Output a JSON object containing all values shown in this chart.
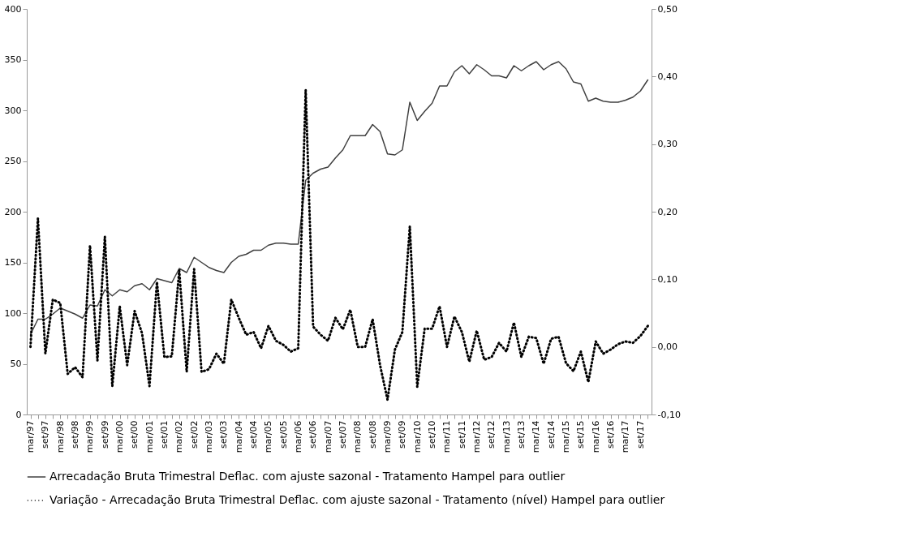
{
  "chart_data": {
    "type": "line",
    "categories": [
      "mar/97",
      null,
      "set/97",
      null,
      "mar/98",
      null,
      "set/98",
      null,
      "mar/99",
      null,
      "set/99",
      null,
      "mar/00",
      null,
      "set/00",
      null,
      "mar/01",
      null,
      "set/01",
      null,
      "mar/02",
      null,
      "set/02",
      null,
      "mar/03",
      null,
      "set/03",
      null,
      "mar/04",
      null,
      "set/04",
      null,
      "mar/05",
      null,
      "set/05",
      null,
      "mar/06",
      null,
      "set/06",
      null,
      "mar/07",
      null,
      "set/07",
      null,
      "mar/08",
      null,
      "set/08",
      null,
      "mar/09",
      null,
      "set/09",
      null,
      "mar/10",
      null,
      "set/10",
      null,
      "mar/11",
      null,
      "set/11",
      null,
      "mar/12",
      null,
      "set/12",
      null,
      "mar/13",
      null,
      "set/13",
      null,
      "mar/14",
      null,
      "set/14",
      null,
      "mar/15",
      null,
      "set/15",
      null,
      "mar/16",
      null,
      "set/16",
      null,
      "mar/17",
      null,
      "set/17",
      null
    ],
    "series": [
      {
        "name": "Arrecadação Bruta Trimestral Deflac. com ajuste sazonal - Tratamento Hampel para outlier",
        "color": "#404040",
        "line_style": "solid",
        "values": [
          79,
          94,
          94,
          99,
          105,
          102,
          99,
          95,
          108,
          107,
          123,
          117,
          123,
          121,
          127,
          129,
          123,
          134,
          132,
          130,
          144,
          140,
          155,
          150,
          145,
          142,
          140,
          150,
          156,
          158,
          162,
          162,
          167,
          169,
          169,
          168,
          168,
          231,
          238,
          242,
          244,
          253,
          261,
          275,
          275,
          275,
          286,
          279,
          257,
          256,
          261,
          308,
          290,
          299,
          307,
          324,
          324,
          338,
          344,
          336,
          345,
          340,
          334,
          334,
          332,
          344,
          339,
          344,
          348,
          340,
          345,
          348,
          341,
          328,
          326,
          309,
          312,
          309,
          308,
          308,
          310,
          313,
          319,
          330
        ]
      },
      {
        "name": "Variação - Arrecadação Bruta Trimestral Deflac. com ajuste sazonal - Tratamento (nível) Hampel para outlier",
        "color": "#000000",
        "line_style": "dotted",
        "axis": "y2",
        "values": [
          0.0,
          0.19,
          -0.01,
          0.07,
          0.065,
          -0.04,
          -0.03,
          -0.045,
          0.15,
          -0.02,
          0.163,
          -0.058,
          0.06,
          -0.027,
          0.053,
          0.02,
          -0.058,
          0.096,
          -0.015,
          -0.014,
          0.113,
          -0.037,
          0.115,
          -0.037,
          -0.033,
          -0.01,
          -0.025,
          0.07,
          0.043,
          0.018,
          0.022,
          -0.002,
          0.031,
          0.009,
          0.003,
          -0.007,
          -0.002,
          0.38,
          0.03,
          0.018,
          0.009,
          0.043,
          0.026,
          0.055,
          0.0,
          0.0,
          0.041,
          -0.027,
          -0.078,
          -0.004,
          0.022,
          0.178,
          -0.059,
          0.027,
          0.027,
          0.06,
          0.0,
          0.045,
          0.022,
          -0.022,
          0.024,
          -0.019,
          -0.015,
          0.006,
          -0.007,
          0.036,
          -0.015,
          0.015,
          0.013,
          -0.025,
          0.012,
          0.015,
          -0.024,
          -0.036,
          -0.007,
          -0.052,
          0.008,
          -0.01,
          -0.004,
          0.004,
          0.008,
          0.006,
          0.016,
          0.031
        ]
      }
    ],
    "ylim": [
      0,
      400
    ],
    "yticks": [
      0,
      50,
      100,
      150,
      200,
      250,
      300,
      350,
      400
    ],
    "y2lim": [
      -0.1,
      0.5
    ],
    "y2ticks": [
      {
        "value": -0.1,
        "label": "-0,10"
      },
      {
        "value": 0.0,
        "label": "0,00"
      },
      {
        "value": 0.1,
        "label": "0,10"
      },
      {
        "value": 0.2,
        "label": "0,20"
      },
      {
        "value": 0.3,
        "label": "0,30"
      },
      {
        "value": 0.4,
        "label": "0,40"
      },
      {
        "value": 0.5,
        "label": "0,50"
      }
    ],
    "grid": false,
    "legend": "bottom"
  }
}
